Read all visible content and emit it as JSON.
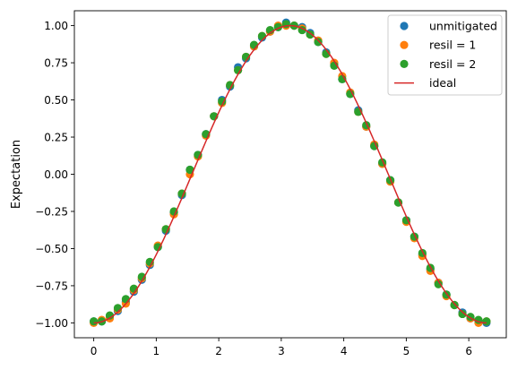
{
  "chart_data": {
    "type": "scatter",
    "title": "",
    "xlabel": "",
    "ylabel": "Expectation",
    "xlim": [
      -0.31,
      6.6
    ],
    "ylim": [
      -1.1,
      1.1
    ],
    "grid": false,
    "legend_position": "top-right",
    "xticks": [
      0,
      1,
      2,
      3,
      4,
      5,
      6
    ],
    "xtick_labels": [
      "0",
      "1",
      "2",
      "3",
      "4",
      "5",
      "6"
    ],
    "yticks": [
      1.0,
      0.75,
      0.5,
      0.25,
      0.0,
      -0.25,
      -0.5,
      -0.75,
      -1.0
    ],
    "ytick_labels": [
      "1.00",
      "0.75",
      "0.50",
      "0.25",
      "0.00",
      "−0.25",
      "−0.50",
      "−0.75",
      "−1.00"
    ],
    "x": [
      0.0,
      0.1282,
      0.2565,
      0.3847,
      0.5129,
      0.6411,
      0.7694,
      0.8976,
      1.0258,
      1.1541,
      1.2823,
      1.4105,
      1.5387,
      1.667,
      1.7952,
      1.9234,
      2.0517,
      2.1799,
      2.3081,
      2.4363,
      2.5646,
      2.6928,
      2.821,
      2.9493,
      3.0775,
      3.2057,
      3.3339,
      3.4622,
      3.5904,
      3.7186,
      3.8468,
      3.9751,
      4.1033,
      4.2315,
      4.3598,
      4.488,
      4.6162,
      4.7444,
      4.8727,
      5.0009,
      5.1291,
      5.2574,
      5.3856,
      5.5138,
      5.642,
      5.7703,
      5.8985,
      6.0267,
      6.155,
      6.2832
    ],
    "series": [
      {
        "name": "unmitigated",
        "color": "#1f77b4",
        "marker": "circle",
        "values": [
          -0.99,
          -0.99,
          -0.96,
          -0.92,
          -0.86,
          -0.79,
          -0.71,
          -0.61,
          -0.49,
          -0.38,
          -0.26,
          -0.14,
          0.03,
          0.13,
          0.27,
          0.39,
          0.5,
          0.59,
          0.72,
          0.78,
          0.86,
          0.92,
          0.96,
          0.99,
          1.02,
          1.0,
          0.99,
          0.95,
          0.89,
          0.82,
          0.74,
          0.64,
          0.54,
          0.43,
          0.32,
          0.19,
          0.07,
          -0.04,
          -0.19,
          -0.31,
          -0.42,
          -0.54,
          -0.64,
          -0.73,
          -0.81,
          -0.88,
          -0.93,
          -0.97,
          -0.99,
          -1.0
        ]
      },
      {
        "name": "resil = 1",
        "color": "#ff7f0e",
        "marker": "circle",
        "values": [
          -1.0,
          -0.98,
          -0.97,
          -0.91,
          -0.87,
          -0.78,
          -0.7,
          -0.6,
          -0.48,
          -0.37,
          -0.27,
          -0.13,
          0.0,
          0.12,
          0.26,
          0.39,
          0.48,
          0.6,
          0.7,
          0.79,
          0.86,
          0.93,
          0.96,
          1.0,
          1.0,
          1.0,
          0.98,
          0.94,
          0.9,
          0.81,
          0.75,
          0.66,
          0.55,
          0.42,
          0.32,
          0.2,
          0.07,
          -0.05,
          -0.19,
          -0.32,
          -0.43,
          -0.55,
          -0.65,
          -0.73,
          -0.82,
          -0.88,
          -0.94,
          -0.97,
          -1.0,
          -0.99
        ]
      },
      {
        "name": "resil = 2",
        "color": "#2ca02c",
        "marker": "circle",
        "values": [
          -0.99,
          -0.99,
          -0.95,
          -0.9,
          -0.84,
          -0.77,
          -0.69,
          -0.59,
          -0.49,
          -0.37,
          -0.25,
          -0.13,
          0.03,
          0.13,
          0.27,
          0.39,
          0.49,
          0.6,
          0.7,
          0.79,
          0.87,
          0.93,
          0.97,
          0.99,
          1.01,
          1.0,
          0.97,
          0.94,
          0.89,
          0.81,
          0.73,
          0.64,
          0.54,
          0.42,
          0.33,
          0.19,
          0.08,
          -0.04,
          -0.19,
          -0.31,
          -0.42,
          -0.53,
          -0.63,
          -0.74,
          -0.81,
          -0.88,
          -0.94,
          -0.96,
          -0.98,
          -0.99
        ]
      },
      {
        "name": "ideal",
        "color": "#d62728",
        "marker": "line",
        "function": "-cos(x)",
        "x_range": [
          0.0,
          6.2832
        ]
      }
    ]
  }
}
